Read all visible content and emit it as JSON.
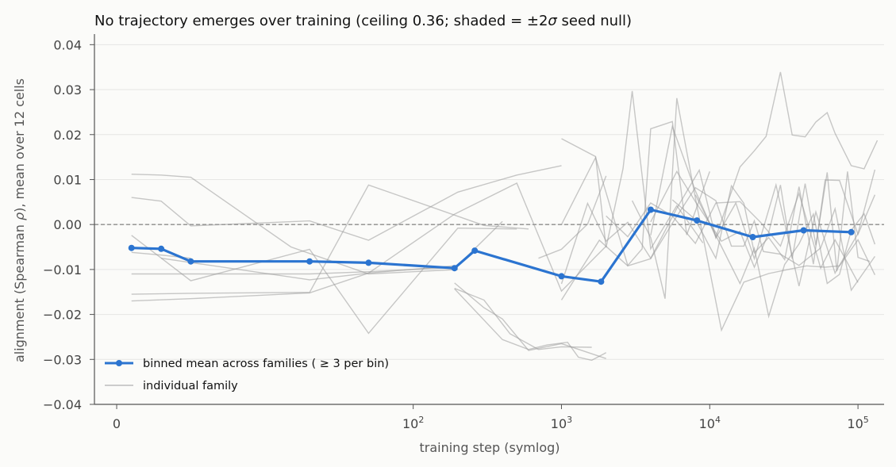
{
  "chart_data": {
    "type": "line",
    "title": "No trajectory emerges over training (ceiling 0.36; shaded = ±2σ seed null)",
    "title_parts": {
      "pre": "No trajectory emerges over training (ceiling 0.36; shaded = ±2",
      "sigma": "σ",
      "post": " seed null)"
    },
    "xlabel": "training step (symlog)",
    "ylabel_parts": {
      "pre": "alignment (Spearman ",
      "rho": "ρ",
      "post": "), mean over 12 cells"
    },
    "x_scale": "symlog",
    "xlim": [
      -1.5,
      150000
    ],
    "ylim": [
      -0.04,
      0.042
    ],
    "x_ticks": [
      {
        "value": 0,
        "label": "0"
      },
      {
        "value": 100,
        "label": "10",
        "exp": "2"
      },
      {
        "value": 1000,
        "label": "10",
        "exp": "3"
      },
      {
        "value": 10000,
        "label": "10",
        "exp": "4"
      },
      {
        "value": 100000,
        "label": "10",
        "exp": "5"
      }
    ],
    "y_ticks": [
      {
        "value": 0.04,
        "label": "0.04"
      },
      {
        "value": 0.03,
        "label": "0.03"
      },
      {
        "value": 0.02,
        "label": "0.02"
      },
      {
        "value": 0.01,
        "label": "0.01"
      },
      {
        "value": 0.0,
        "label": "0.00"
      },
      {
        "value": -0.01,
        "label": "−0.01"
      },
      {
        "value": -0.02,
        "label": "−0.02"
      },
      {
        "value": -0.03,
        "label": "−0.03"
      },
      {
        "value": -0.04,
        "label": "−0.04"
      }
    ],
    "grid": "horizontal",
    "reference_line": 0,
    "legend": {
      "location": "lower-left",
      "entries": [
        {
          "label": "binned mean across families ( ≥ 3 per bin)",
          "color": "#2b74d0"
        },
        {
          "label": "individual family",
          "color": "#bdbdbd"
        }
      ]
    },
    "series": [
      {
        "name": "binned mean across families ( ≥ 3 per bin)",
        "color": "#2b74d0",
        "x": [
          1,
          3,
          5,
          20,
          50,
          190,
          260,
          1000,
          1850,
          4000,
          8200,
          19500,
          43000,
          90000
        ],
        "y": [
          -0.0052,
          -0.0054,
          -0.0082,
          -0.0082,
          -0.0085,
          -0.0097,
          -0.0058,
          -0.0115,
          -0.0127,
          0.0033,
          0.0009,
          -0.0028,
          -0.0013,
          -0.0017
        ]
      }
    ],
    "family_series": [
      {
        "x": [
          1,
          3,
          5
        ],
        "y": [
          -0.0062,
          -0.0068,
          -0.0075
        ]
      },
      {
        "x": [
          1,
          3,
          5,
          15,
          50,
          200
        ],
        "y": [
          0.0112,
          0.011,
          0.0105,
          -0.005,
          -0.011,
          -0.01
        ]
      },
      {
        "x": [
          1,
          3,
          5,
          20,
          50,
          200,
          500,
          1000
        ],
        "y": [
          0.006,
          0.0052,
          -0.0003,
          0.0008,
          -0.0035,
          0.0072,
          0.011,
          0.0131
        ]
      },
      {
        "x": [
          1,
          5,
          20,
          50,
          200,
          400
        ],
        "y": [
          -0.017,
          -0.0165,
          -0.0152,
          -0.0108,
          -0.0091,
          0.0007
        ]
      },
      {
        "x": [
          1,
          5,
          20,
          50,
          200
        ],
        "y": [
          -0.011,
          -0.011,
          -0.011,
          -0.0105,
          -0.0095
        ]
      },
      {
        "x": [
          1,
          5,
          20,
          50,
          300,
          600
        ],
        "y": [
          -0.0155,
          -0.0153,
          -0.0151,
          0.0088,
          -0.0002,
          -0.001
        ]
      },
      {
        "x": [
          1,
          5,
          20,
          50,
          200,
          500
        ],
        "y": [
          -0.0024,
          -0.0125,
          -0.0055,
          -0.0242,
          -0.0008,
          -0.001
        ]
      },
      {
        "x": [
          3,
          20,
          50,
          190,
          500,
          1000,
          2000
        ],
        "y": [
          -0.0075,
          -0.0123,
          -0.0108,
          0.0023,
          0.0092,
          -0.0148,
          -0.0048
        ]
      },
      {
        "x": [
          190,
          300,
          400,
          600,
          1000,
          2000
        ],
        "y": [
          -0.013,
          -0.0185,
          -0.021,
          -0.028,
          -0.0265,
          -0.0298
        ]
      },
      {
        "x": [
          190,
          300,
          450,
          700,
          1000,
          1600
        ],
        "y": [
          -0.0142,
          -0.0168,
          -0.0243,
          -0.0278,
          -0.0272,
          -0.0273
        ]
      },
      {
        "x": [
          190,
          400,
          600,
          800,
          1100,
          1300,
          1600,
          2000
        ],
        "y": [
          -0.0143,
          -0.0256,
          -0.0278,
          -0.0268,
          -0.0262,
          -0.0295,
          -0.0302,
          -0.0285
        ]
      },
      {
        "x": [
          700,
          1000,
          1500,
          2000
        ],
        "y": [
          -0.0075,
          -0.0055,
          0.0001,
          0.0108
        ]
      },
      {
        "x": [
          1000,
          1700,
          2000,
          2600,
          3000,
          4000,
          6000,
          9000
        ],
        "y": [
          0.0191,
          0.0151,
          -0.0051,
          0.0124,
          0.0297,
          -0.0054,
          0.0042,
          -0.0041
        ]
      },
      {
        "x": [
          1000,
          1700,
          2800,
          3500,
          4000,
          5600,
          7000,
          10000
        ],
        "y": [
          0.0,
          0.0149,
          -0.0091,
          -0.0054,
          0.0213,
          0.0229,
          -0.0023,
          0.0118
        ]
      },
      {
        "x": [
          1000,
          1500,
          2000,
          2800,
          4000,
          6000,
          8500,
          11000,
          15000,
          20000,
          28000,
          40000,
          52000,
          70000,
          100000,
          130000
        ],
        "y": [
          -0.0132,
          0.0047,
          -0.0037,
          0.0005,
          -0.0075,
          0.0036,
          0.0121,
          -0.003,
          0.0048,
          -0.0076,
          0.0088,
          -0.0137,
          0.0028,
          -0.0108,
          -0.002,
          0.0122
        ]
      },
      {
        "x": [
          1000,
          1800,
          2800,
          4000,
          5600,
          8000,
          11000,
          14000,
          17000,
          20000,
          23000,
          30000,
          40000,
          56000,
          70000,
          90000,
          130000
        ],
        "y": [
          -0.0168,
          -0.0035,
          -0.0092,
          -0.0076,
          0.0003,
          0.0082,
          0.0053,
          -0.0048,
          -0.0048,
          0.0008,
          -0.006,
          -0.0066,
          -0.0091,
          -0.0052,
          0.0035,
          -0.0146,
          -0.0071
        ]
      },
      {
        "x": [
          2000,
          2800,
          4000,
          5600,
          8000,
          11000,
          16000,
          22000,
          30000,
          40000,
          56000,
          70000,
          100000
        ],
        "y": [
          0.0019,
          -0.0027,
          0.0048,
          0.0019,
          -0.0042,
          0.0048,
          0.0051,
          0.0005,
          -0.0048,
          0.0069,
          -0.0097,
          -0.0034,
          -0.0129
        ]
      },
      {
        "x": [
          3000,
          4000,
          5000,
          6000,
          8000,
          12000,
          17000,
          25000,
          35000,
          45000,
          60000,
          75000,
          100000,
          130000
        ],
        "y": [
          0.0053,
          -0.0029,
          -0.0165,
          0.0281,
          0.0059,
          -0.0235,
          -0.0128,
          -0.0109,
          -0.0099,
          -0.0092,
          -0.0095,
          -0.0092,
          -0.0034,
          -0.0112
        ]
      },
      {
        "x": [
          4000,
          6000,
          8000,
          12000,
          16000,
          20000,
          25000,
          30000,
          36000,
          44000,
          52000,
          62000,
          72000,
          85000,
          100000,
          120000
        ],
        "y": [
          0.0006,
          0.0118,
          0.0051,
          -0.0037,
          -0.0015,
          -0.0095,
          -0.0018,
          0.0088,
          -0.0076,
          0.0091,
          -0.0046,
          0.0116,
          -0.0104,
          0.0118,
          -0.0073,
          -0.0082
        ]
      },
      {
        "x": [
          4000,
          5600,
          8000,
          11000,
          16000,
          20000,
          24000,
          30000,
          36000,
          44000,
          52000,
          62000,
          70000,
          90000,
          110000,
          135000
        ],
        "y": [
          -0.0024,
          0.0218,
          0.0075,
          -0.0028,
          0.0128,
          0.0164,
          0.0196,
          0.0339,
          0.0199,
          0.0195,
          0.0228,
          0.0249,
          0.0203,
          0.0131,
          0.0124,
          0.0187
        ]
      },
      {
        "x": [
          5600,
          8000,
          11000,
          14000,
          17000,
          20000,
          25000,
          32000,
          40000,
          50000,
          60000,
          75000,
          100000,
          130000
        ],
        "y": [
          0.0055,
          0.0011,
          -0.0075,
          0.0086,
          0.0047,
          -0.0063,
          -0.0029,
          -0.0078,
          0.0084,
          -0.0088,
          0.0099,
          0.0098,
          -0.0022,
          0.0066
        ]
      },
      {
        "x": [
          8000,
          12000,
          16000,
          20000,
          25000,
          32000,
          40000,
          50000,
          62000,
          75000,
          90000,
          110000,
          130000
        ],
        "y": [
          0.0066,
          -0.0049,
          -0.0131,
          -0.0053,
          -0.0204,
          -0.0089,
          -0.0043,
          0.0023,
          -0.0131,
          -0.0111,
          -0.0013,
          0.0024,
          -0.0044
        ]
      }
    ]
  }
}
